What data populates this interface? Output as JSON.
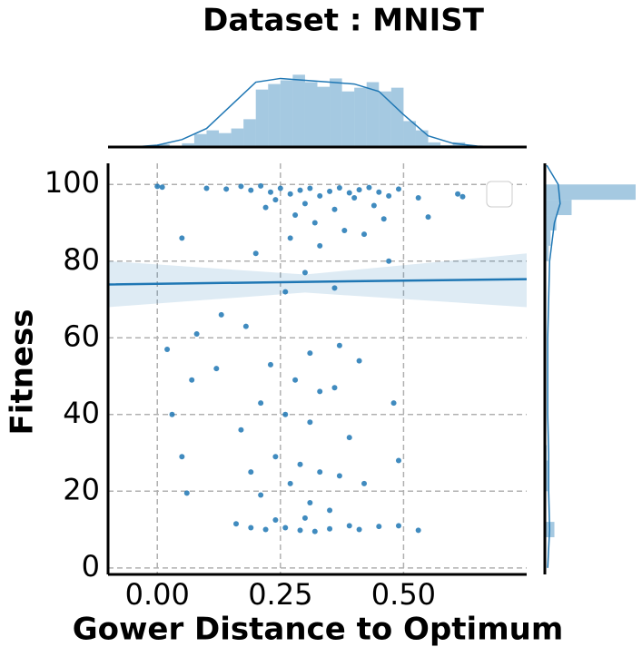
{
  "chart_data": {
    "type": "scatter",
    "title": "Dataset :  MNIST",
    "xlabel": "Gower Distance to Optimum",
    "ylabel": "Fitness",
    "color": "#1f77b4",
    "grid": true,
    "xlim": [
      -0.1,
      0.75
    ],
    "ylim": [
      -1.7,
      105.5
    ],
    "xticks": [
      {
        "value": 0,
        "label": "0.00"
      },
      {
        "value": 0.25,
        "label": "0.25"
      },
      {
        "value": 0.5,
        "label": "0.50"
      }
    ],
    "yticks": [
      0,
      20,
      40,
      60,
      80,
      100
    ],
    "x": [
      0,
      0.01,
      0.1,
      0.14,
      0.17,
      0.19,
      0.21,
      0.23,
      0.25,
      0.27,
      0.29,
      0.31,
      0.33,
      0.35,
      0.37,
      0.39,
      0.41,
      0.43,
      0.45,
      0.47,
      0.49,
      0.53,
      0.61,
      0.62,
      0.24,
      0.3,
      0.4,
      0.44,
      0.36,
      0.28,
      0.46,
      0.32,
      0.38,
      0.22,
      0.55,
      0.27,
      0.33,
      0.05,
      0.42,
      0.2,
      0.3,
      0.47,
      0.26,
      0.13,
      0.36,
      0.08,
      0.02,
      0.18,
      0.31,
      0.12,
      0.37,
      0.23,
      0.28,
      0.07,
      0.41,
      0.33,
      0.21,
      0.26,
      0.36,
      0.03,
      0.31,
      0.48,
      0.17,
      0.39,
      0.05,
      0.24,
      0.29,
      0.33,
      0.19,
      0.37,
      0.42,
      0.27,
      0.49,
      0.06,
      0.21,
      0.31,
      0.35,
      0.16,
      0.19,
      0.22,
      0.26,
      0.29,
      0.32,
      0.35,
      0.39,
      0.41,
      0.45,
      0.49,
      0.53,
      0.24,
      0.3
    ],
    "y": [
      99.5,
      99.3,
      99,
      98.8,
      99.5,
      98.5,
      99.6,
      98,
      99,
      97.5,
      98.5,
      99,
      97,
      98.2,
      99.1,
      97.8,
      98.6,
      99.2,
      98,
      97,
      98.8,
      96.5,
      97.5,
      96.8,
      96,
      95,
      96.5,
      94.5,
      93.5,
      92,
      91,
      90,
      88,
      94,
      91.5,
      86,
      84,
      86,
      87,
      82,
      77,
      80,
      72,
      66,
      73,
      61,
      57,
      63,
      56,
      52,
      58,
      53,
      49,
      49,
      54,
      46,
      43,
      40,
      47,
      40,
      38,
      43,
      36,
      34,
      29,
      29,
      27,
      25,
      25,
      24,
      22,
      22,
      28,
      19.5,
      19,
      17,
      15,
      11.5,
      10.5,
      10,
      10.5,
      9.8,
      9.5,
      10.2,
      11,
      10,
      10.8,
      11,
      9.8,
      12.5,
      13
    ],
    "regression": {
      "x": [
        -0.1,
        0.3,
        0.75
      ],
      "y": [
        73.9,
        74.6,
        75.3
      ],
      "ci_lower": [
        68,
        71.8,
        68
      ],
      "ci_upper": [
        80,
        76.5,
        82
      ]
    },
    "count_lim": [
      0,
      95
    ],
    "x_hist": {
      "bins": [
        0,
        0.025,
        0.05,
        0.075,
        0.1,
        0.125,
        0.15,
        0.175,
        0.2,
        0.225,
        0.25,
        0.275,
        0.3,
        0.325,
        0.35,
        0.375,
        0.4,
        0.425,
        0.45,
        0.475,
        0.5,
        0.525,
        0.55,
        0.575,
        0.6,
        0.625
      ],
      "counts": [
        3,
        0,
        4,
        14,
        18,
        15,
        20,
        30,
        62,
        68,
        72,
        78,
        70,
        65,
        74,
        60,
        64,
        70,
        60,
        64,
        28,
        18,
        5,
        2,
        5
      ]
    },
    "y_hist": {
      "bins": [
        0,
        4,
        8,
        12,
        16,
        20,
        24,
        28,
        32,
        36,
        40,
        44,
        48,
        52,
        56,
        60,
        64,
        68,
        72,
        76,
        80,
        84,
        88,
        92,
        96,
        100
      ],
      "counts": [
        0,
        0,
        10,
        1,
        1,
        3,
        3,
        2,
        1,
        1,
        1,
        1,
        1,
        1,
        1,
        1,
        1,
        1,
        1,
        1,
        4,
        6,
        12,
        28,
        95
      ]
    },
    "x_kde": {
      "x": [
        -0.05,
        0,
        0.05,
        0.1,
        0.15,
        0.2,
        0.25,
        0.3,
        0.35,
        0.4,
        0.45,
        0.5,
        0.55,
        0.6,
        0.65,
        0.7
      ],
      "density": [
        0,
        2,
        8,
        20,
        45,
        70,
        74,
        72,
        70,
        68,
        60,
        35,
        12,
        4,
        1,
        0
      ]
    },
    "y_kde": {
      "y": [
        0,
        10,
        20,
        30,
        40,
        50,
        60,
        70,
        80,
        90,
        95,
        100,
        105
      ],
      "density": [
        3,
        5,
        4,
        4,
        3,
        3,
        3,
        4,
        5,
        10,
        16,
        14,
        2
      ]
    }
  }
}
